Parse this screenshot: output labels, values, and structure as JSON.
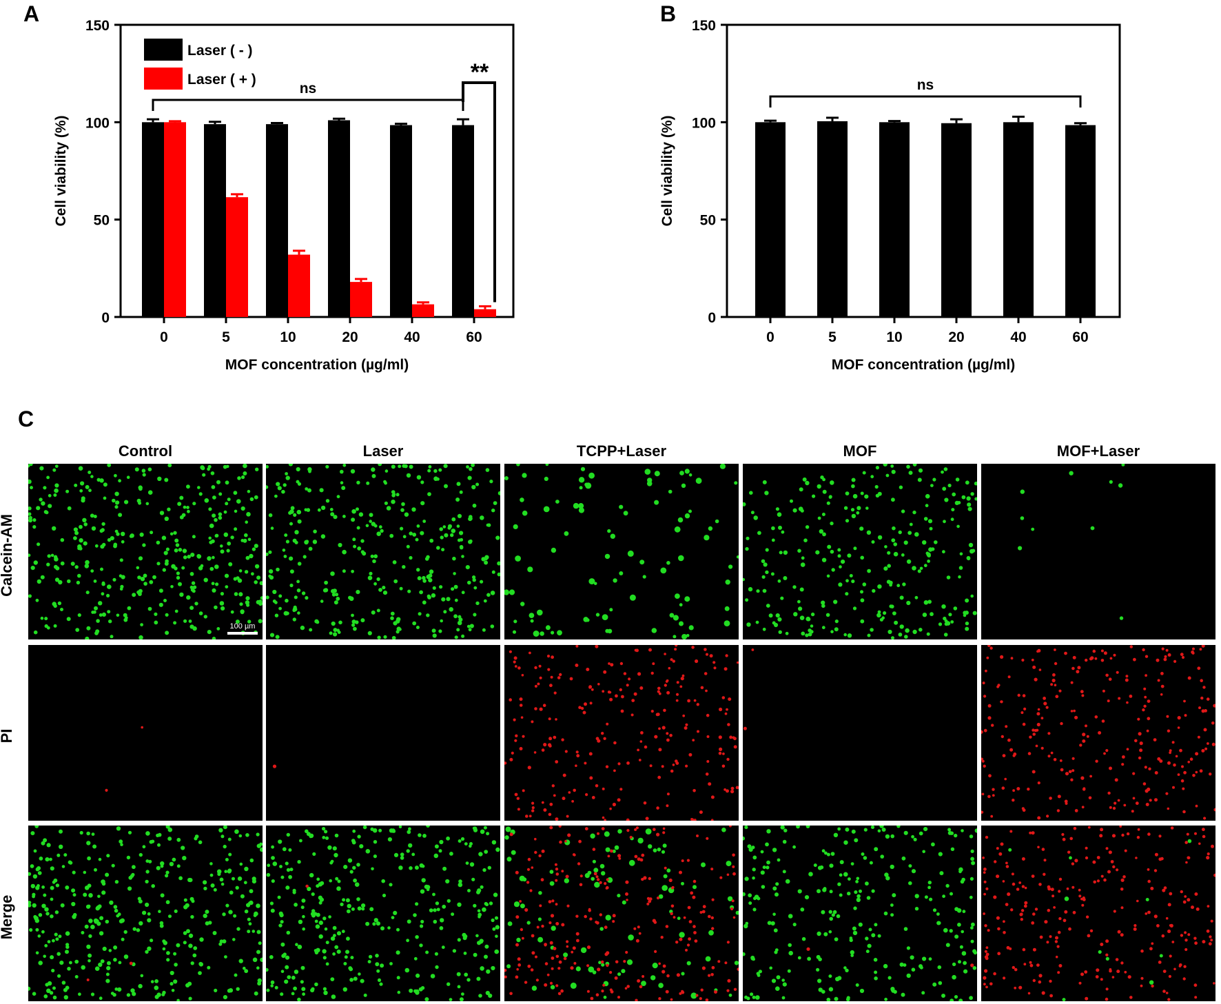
{
  "panels": {
    "a": "A",
    "b": "B",
    "c": "C"
  },
  "chart_data": [
    {
      "panel": "A",
      "type": "bar",
      "categories": [
        "0",
        "5",
        "10",
        "20",
        "40",
        "60"
      ],
      "series": [
        {
          "name": "Laser ( - )",
          "color": "#000000",
          "values": [
            100,
            99,
            99,
            101,
            98.5,
            98.5
          ],
          "errors": [
            1.5,
            1.2,
            0.6,
            0.8,
            0.7,
            3
          ]
        },
        {
          "name": "Laser ( + )",
          "color": "#ff0000",
          "values": [
            100,
            61.5,
            32,
            18,
            6.5,
            4
          ],
          "errors": [
            0.5,
            1.5,
            2,
            1.5,
            1,
            1.5
          ]
        }
      ],
      "xlabel": "MOF concentration (µg/ml)",
      "ylabel": "Cell viability (%)",
      "ylim": [
        0,
        150
      ],
      "yticks": [
        0,
        50,
        100,
        150
      ],
      "legend": "top-left",
      "annotations": {
        "ns": "ns",
        "star": "**"
      }
    },
    {
      "panel": "B",
      "type": "bar",
      "categories": [
        "0",
        "5",
        "10",
        "20",
        "40",
        "60"
      ],
      "series": [
        {
          "color": "#000000",
          "values": [
            100,
            100.5,
            100,
            99.5,
            100,
            98.5
          ],
          "errors": [
            0.8,
            1.8,
            0.6,
            2,
            2.8,
            1
          ]
        }
      ],
      "xlabel": "MOF concentration (µg/ml)",
      "ylabel": "Cell viability (%)",
      "ylim": [
        0,
        150
      ],
      "yticks": [
        0,
        50,
        100,
        150
      ],
      "annotations": {
        "ns": "ns"
      }
    }
  ],
  "micrographs": {
    "columns": [
      "Control",
      "Laser",
      "TCPP+Laser",
      "MOF",
      "MOF+Laser"
    ],
    "rows": [
      "Calcein-AM",
      "PI",
      "Merge"
    ],
    "scale_bar": "100 µm",
    "colors": {
      "live": "#22dd22",
      "dead": "#e01818",
      "background": "#000000"
    }
  }
}
